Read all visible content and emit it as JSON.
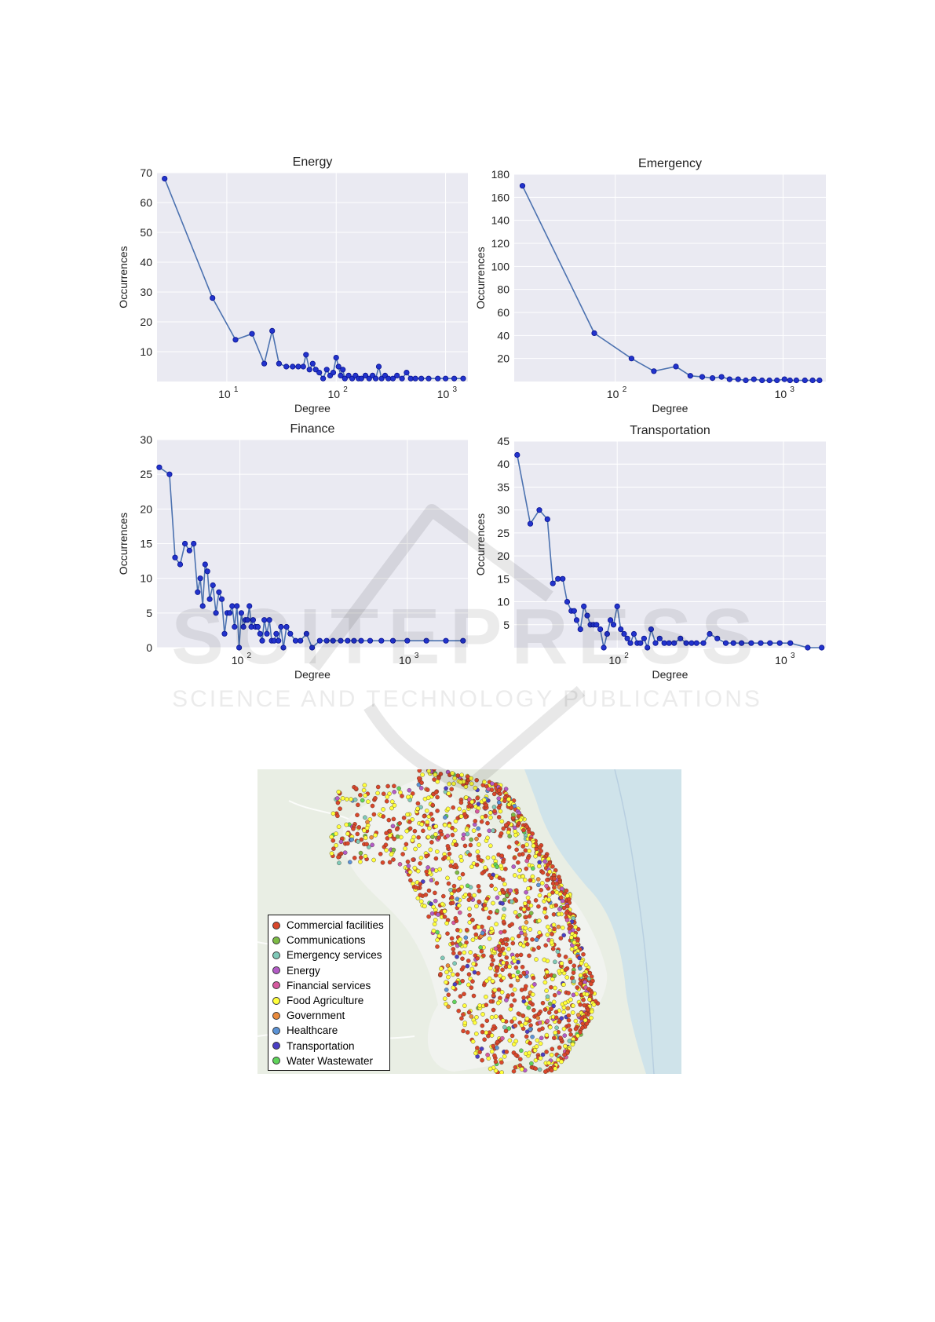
{
  "chart_data": [
    {
      "type": "line",
      "title": "Energy",
      "xlabel": "Degree",
      "ylabel": "Occurrences",
      "x_scale": "log",
      "xlim": [
        2.3,
        1600
      ],
      "ylim": [
        0,
        70
      ],
      "yticks": [
        10,
        20,
        30,
        40,
        50,
        60,
        70
      ],
      "xticks": [
        10,
        100,
        1000
      ],
      "xtick_labels": [
        "10",
        "2",
        "3"
      ],
      "xtick_base": "10",
      "xtick_exponents": [
        "1",
        "2",
        "3"
      ],
      "grid": true,
      "x": [
        2.7,
        7.4,
        12,
        17,
        22,
        26,
        30,
        35,
        40,
        45,
        50,
        53,
        57,
        61,
        65,
        70,
        76,
        82,
        88,
        94,
        100,
        105,
        110,
        115,
        120,
        130,
        140,
        150,
        160,
        170,
        185,
        200,
        215,
        230,
        245,
        260,
        280,
        300,
        330,
        360,
        400,
        440,
        480,
        530,
        600,
        700,
        850,
        1000,
        1200,
        1450
      ],
      "values": [
        68,
        28,
        14,
        16,
        6,
        17,
        6,
        5,
        5,
        5,
        5,
        9,
        4,
        6,
        4,
        3,
        1,
        4,
        2,
        3,
        8,
        5,
        2,
        4,
        1,
        2,
        1,
        2,
        1,
        1,
        2,
        1,
        2,
        1,
        5,
        1,
        2,
        1,
        1,
        2,
        1,
        3,
        1,
        1,
        1,
        1,
        1,
        1,
        1,
        1
      ]
    },
    {
      "type": "line",
      "title": "Emergency",
      "xlabel": "Degree",
      "ylabel": "Occurrences",
      "x_scale": "log",
      "xlim": [
        25,
        1800
      ],
      "ylim": [
        0,
        180
      ],
      "yticks": [
        20,
        40,
        60,
        80,
        100,
        120,
        140,
        160,
        180
      ],
      "xticks": [
        100,
        1000
      ],
      "xtick_labels": [
        "2",
        "3"
      ],
      "xtick_base": "10",
      "xtick_exponents": [
        "2",
        "3"
      ],
      "grid": true,
      "x": [
        28,
        75,
        125,
        170,
        230,
        280,
        330,
        380,
        430,
        480,
        540,
        600,
        670,
        750,
        830,
        920,
        1020,
        1100,
        1200,
        1350,
        1500,
        1650
      ],
      "values": [
        170,
        42,
        20,
        9,
        13,
        5,
        4,
        3,
        4,
        2,
        2,
        1,
        2,
        1,
        1,
        1,
        2,
        1,
        1,
        1,
        1,
        1
      ]
    },
    {
      "type": "line",
      "title": "Finance",
      "xlabel": "Degree",
      "ylabel": "Occurrences",
      "x_scale": "log",
      "xlim": [
        32,
        2300
      ],
      "ylim": [
        0,
        30
      ],
      "yticks": [
        0,
        5,
        10,
        15,
        20,
        25,
        30
      ],
      "xticks": [
        100,
        1000
      ],
      "xtick_labels": [
        "2",
        "3"
      ],
      "xtick_base": "10",
      "xtick_exponents": [
        "2",
        "3"
      ],
      "grid": true,
      "x": [
        33,
        38,
        41,
        44,
        47,
        50,
        53,
        56,
        58,
        60,
        62,
        64,
        66,
        69,
        72,
        75,
        78,
        81,
        84,
        87,
        90,
        93,
        96,
        99,
        102,
        105,
        108,
        111,
        114,
        117,
        120,
        124,
        128,
        132,
        136,
        140,
        145,
        150,
        155,
        160,
        165,
        170,
        176,
        182,
        190,
        200,
        215,
        230,
        250,
        270,
        300,
        330,
        360,
        400,
        440,
        480,
        530,
        600,
        700,
        820,
        1000,
        1300,
        1700,
        2150
      ],
      "values": [
        26,
        25,
        13,
        12,
        15,
        14,
        15,
        8,
        10,
        6,
        12,
        11,
        7,
        9,
        5,
        8,
        7,
        2,
        5,
        5,
        6,
        3,
        6,
        0,
        5,
        3,
        4,
        4,
        6,
        3,
        4,
        3,
        3,
        2,
        1,
        4,
        2,
        4,
        1,
        1,
        2,
        1,
        3,
        0,
        3,
        2,
        1,
        1,
        2,
        0,
        1,
        1,
        1,
        1,
        1,
        1,
        1,
        1,
        1,
        1,
        1,
        1,
        1,
        1
      ]
    },
    {
      "type": "line",
      "title": "Transportation",
      "xlabel": "Degree",
      "ylabel": "Occurrences",
      "x_scale": "log",
      "xlim": [
        24,
        1800
      ],
      "ylim": [
        0,
        45
      ],
      "yticks": [
        5,
        10,
        15,
        20,
        25,
        30,
        35,
        40,
        45
      ],
      "xticks": [
        100,
        1000
      ],
      "xtick_labels": [
        "2",
        "3"
      ],
      "xtick_base": "10",
      "xtick_exponents": [
        "2",
        "3"
      ],
      "grid": true,
      "x": [
        25,
        30,
        34,
        38,
        41,
        44,
        47,
        50,
        53,
        55,
        57,
        60,
        63,
        66,
        69,
        72,
        75,
        79,
        83,
        87,
        91,
        95,
        100,
        105,
        110,
        115,
        120,
        126,
        132,
        138,
        145,
        152,
        160,
        170,
        180,
        192,
        205,
        220,
        240,
        260,
        280,
        300,
        330,
        360,
        400,
        450,
        500,
        560,
        640,
        730,
        830,
        950,
        1100,
        1400,
        1700
      ],
      "values": [
        42,
        27,
        30,
        28,
        14,
        15,
        15,
        10,
        8,
        8,
        6,
        4,
        9,
        7,
        5,
        5,
        5,
        4,
        0,
        3,
        6,
        5,
        9,
        4,
        3,
        2,
        1,
        3,
        1,
        1,
        2,
        0,
        4,
        1,
        2,
        1,
        1,
        1,
        2,
        1,
        1,
        1,
        1,
        3,
        2,
        1,
        1,
        1,
        1,
        1,
        1,
        1,
        1,
        0,
        0
      ]
    }
  ],
  "map": {
    "legend": [
      {
        "label": "Commercial facilities",
        "color": "#d9472b"
      },
      {
        "label": "Communications",
        "color": "#7dbb45"
      },
      {
        "label": "Emergency services",
        "color": "#7fc9b8"
      },
      {
        "label": "Energy",
        "color": "#b35cc6"
      },
      {
        "label": "Financial services",
        "color": "#d55aa0"
      },
      {
        "label": "Food Agriculture",
        "color": "#ffff3c"
      },
      {
        "label": "Government",
        "color": "#e98a3b"
      },
      {
        "label": "Healthcare",
        "color": "#5b93d6"
      },
      {
        "label": "Transportation",
        "color": "#4a3fc4"
      },
      {
        "label": "Water Wastewater",
        "color": "#5fd45a"
      }
    ]
  },
  "watermark": {
    "logo_text": "SCITEPRESS",
    "tagline": "SCIENCE AND TECHNOLOGY PUBLICATIONS"
  }
}
